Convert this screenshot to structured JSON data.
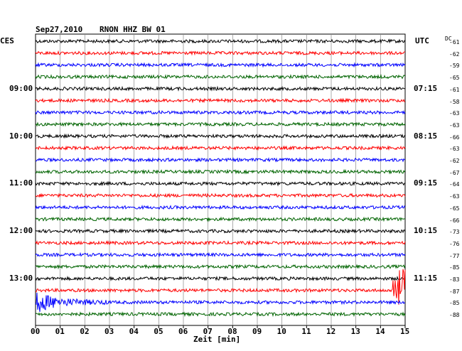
{
  "header": {
    "date": "Sep27,2010",
    "station": "RNON HHZ BW 01",
    "left_zone": "CES",
    "right_zone": "UTC",
    "dc_label": "DC"
  },
  "chart_data": {
    "type": "line",
    "title": "Sep27,2010   RNON HHZ BW 01",
    "xlabel": "Zeit [min]",
    "xlim": [
      0,
      15
    ],
    "x_ticks": [
      "00",
      "01",
      "02",
      "03",
      "04",
      "05",
      "06",
      "07",
      "08",
      "09",
      "10",
      "11",
      "12",
      "13",
      "14",
      "15"
    ],
    "trace_colors": [
      "#000000",
      "#ff0000",
      "#0000ff",
      "#006400"
    ],
    "trace_minutes": 15,
    "left_hour_labels": [
      {
        "label": "09:00",
        "trace": 4
      },
      {
        "label": "10:00",
        "trace": 8
      },
      {
        "label": "11:00",
        "trace": 12
      },
      {
        "label": "12:00",
        "trace": 16
      },
      {
        "label": "13:00",
        "trace": 20
      }
    ],
    "right_hour_labels": [
      {
        "label": "07:15",
        "trace": 4
      },
      {
        "label": "08:15",
        "trace": 8
      },
      {
        "label": "09:15",
        "trace": 12
      },
      {
        "label": "10:15",
        "trace": 16
      },
      {
        "label": "11:15",
        "trace": 20
      }
    ],
    "dc_offsets": [
      "-61",
      "-62",
      "-59",
      "-65",
      "-61",
      "-58",
      "-63",
      "-63",
      "-66",
      "-63",
      "-62",
      "-67",
      "-64",
      "-63",
      "-65",
      "-66",
      "-73",
      "-76",
      "-77",
      "-85",
      "-83",
      "-87",
      "-85",
      "-88"
    ],
    "events": [
      {
        "trace": 21,
        "minute_start": 14.5,
        "minute_end": 15.0,
        "description": "strong burst"
      },
      {
        "trace": 22,
        "minute_start": 0.0,
        "minute_end": 3.0,
        "description": "decaying coda"
      }
    ]
  }
}
